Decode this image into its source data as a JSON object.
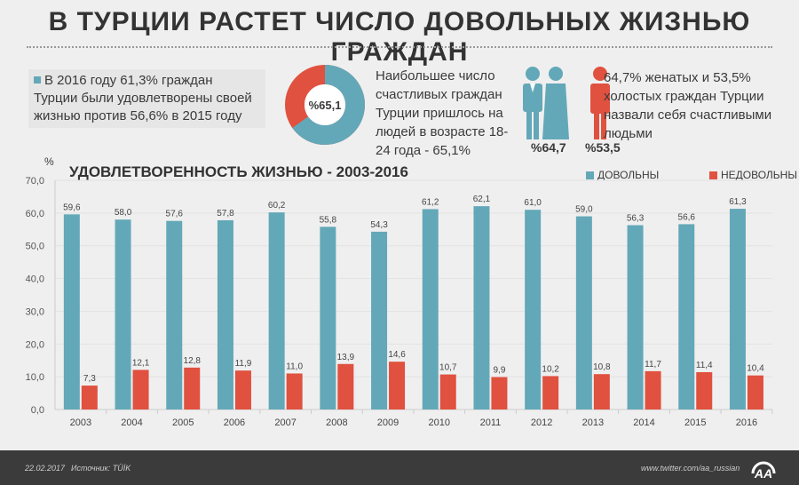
{
  "title": "В ТУРЦИИ РАСТЕТ ЧИСЛО ДОВОЛЬНЫХ ЖИЗНЬЮ ГРАЖДАН",
  "note1": "В 2016 году 61,3% граждан Турции были удовлетворены своей жизнью против 56,6% в 2015 году",
  "donut": {
    "label": "%65,1",
    "value": 65.1,
    "colors": {
      "main": "#63a8b8",
      "rest": "#e0513f"
    }
  },
  "note2": "Наибольшее число счастливых граждан Турции пришлось на людей в возрасте 18-24 года - 65,1%",
  "married": {
    "label": "%64,7",
    "icon": "married-couple-icon"
  },
  "single": {
    "label": "%53,5",
    "icon": "single-person-icon"
  },
  "note3": "64,7% женатых и 53,5% холостых граждан Турции назвали себя счастливыми людьми",
  "footer": {
    "date": "22.02.2017",
    "source": "Источник: TÜİK",
    "twitter": "www.twitter.com/aa_russian",
    "logo_text": "AA"
  },
  "chart_data": {
    "type": "bar",
    "title": "УДОВЛЕТВОРЕННОСТЬ ЖИЗНЬЮ - 2003-2016",
    "ylabel": "%",
    "ylim": [
      0,
      70
    ],
    "yticks": [
      "0,0",
      "10,0",
      "20,0",
      "30,0",
      "40,0",
      "50,0",
      "60,0",
      "70,0"
    ],
    "legend_position": "top-right",
    "categories": [
      "2003",
      "2004",
      "2005",
      "2006",
      "2007",
      "2008",
      "2009",
      "2010",
      "2011",
      "2012",
      "2013",
      "2014",
      "2015",
      "2016"
    ],
    "series": [
      {
        "name": "ДОВОЛЬНЫ",
        "color": "#63a8b8",
        "values": [
          59.6,
          58.0,
          57.6,
          57.8,
          60.2,
          55.8,
          54.3,
          61.2,
          62.1,
          61.0,
          59.0,
          56.3,
          56.6,
          61.3
        ]
      },
      {
        "name": "НЕДОВОЛЬНЫ",
        "color": "#e0513f",
        "values": [
          7.3,
          12.1,
          12.8,
          11.9,
          11.0,
          13.9,
          14.6,
          10.7,
          9.9,
          10.2,
          10.8,
          11.7,
          11.4,
          10.4
        ]
      }
    ]
  }
}
